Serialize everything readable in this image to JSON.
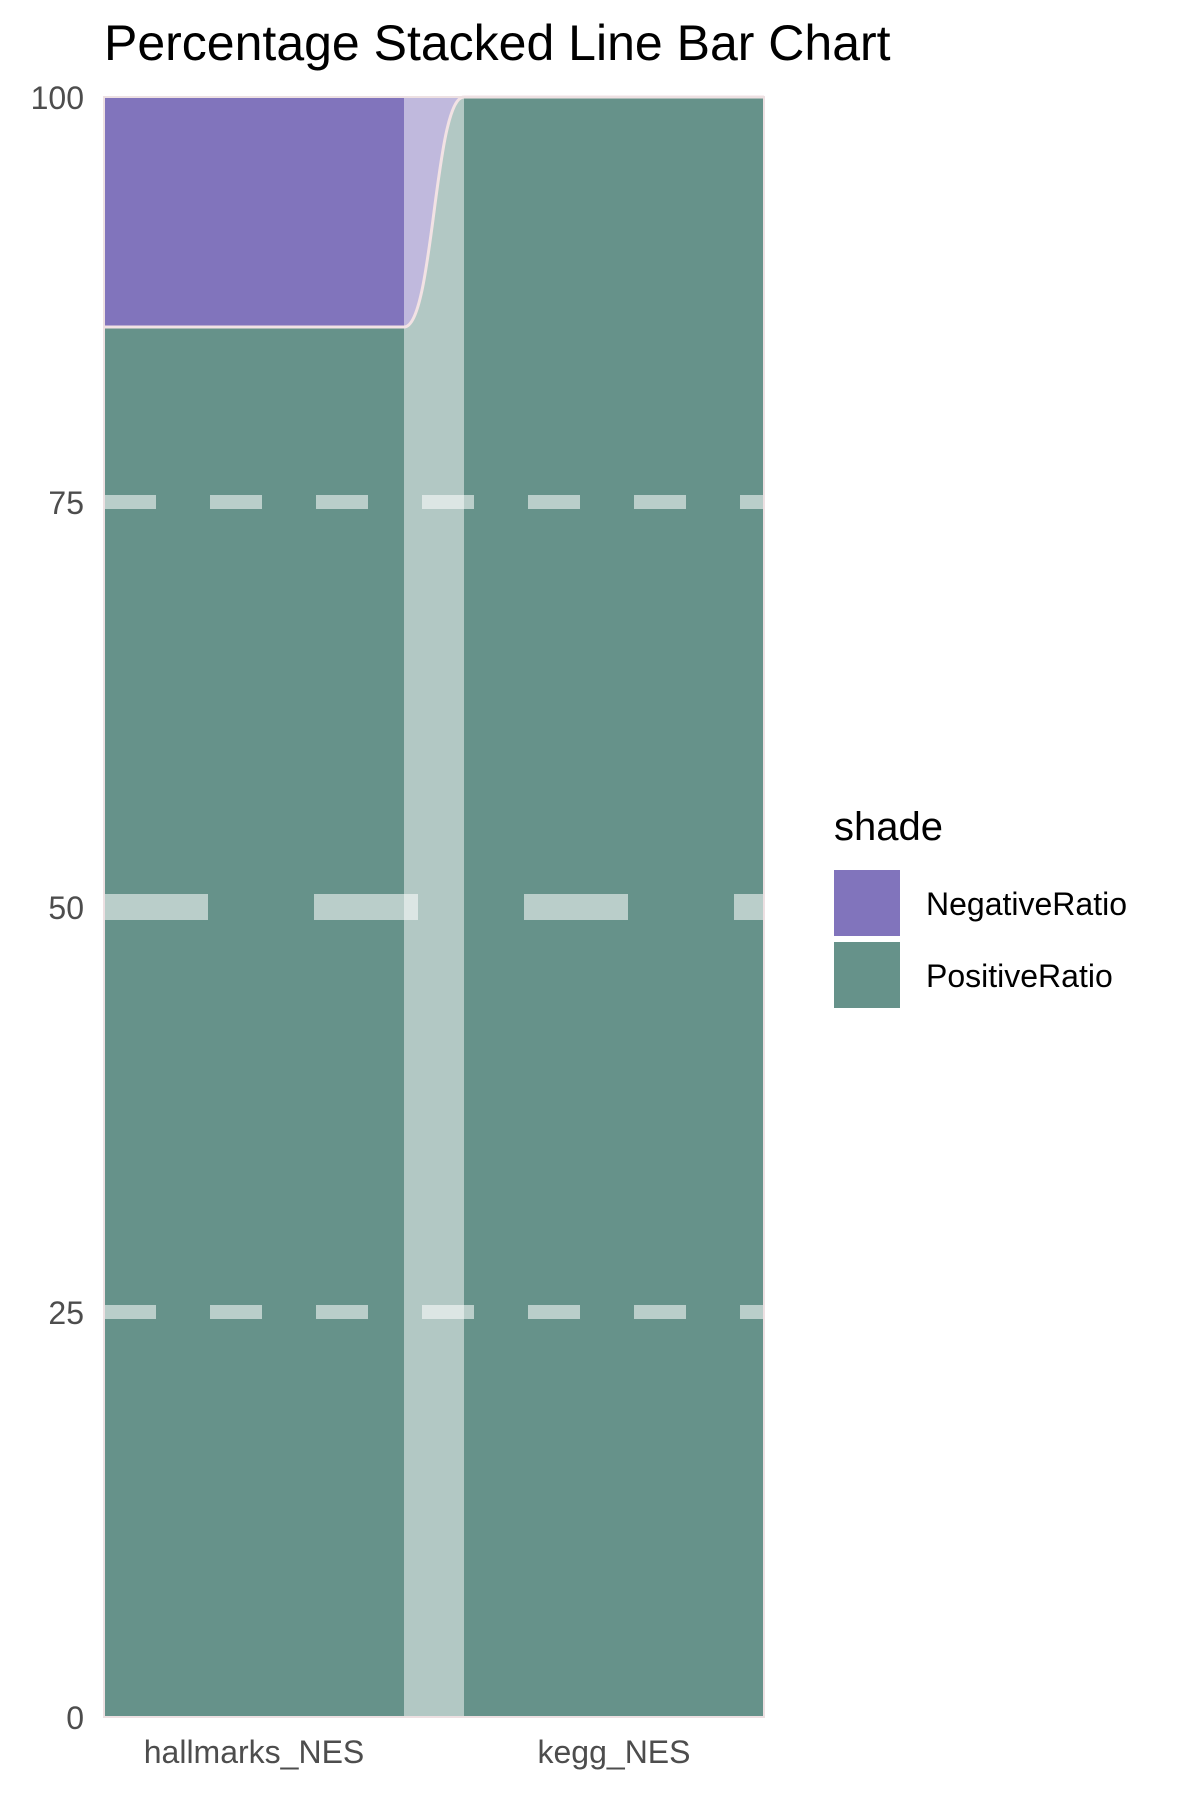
{
  "chart_data": {
    "type": "bar",
    "title": "Percentage Stacked Line Bar Chart",
    "xlabel": "",
    "ylabel": "",
    "categories": [
      "hallmarks_NES",
      "kegg_NES"
    ],
    "series": [
      {
        "name": "NegativeRatio",
        "color": "#8174BC",
        "values": [
          14.2,
          0
        ]
      },
      {
        "name": "PositiveRatio",
        "color": "#66928A",
        "values": [
          85.8,
          100
        ]
      }
    ],
    "ylim": [
      0,
      100
    ],
    "yticks": [
      "0",
      "25",
      "50",
      "75",
      "100"
    ],
    "grid": "dashed horizontal lines at 25, 50, 75",
    "connector_band": true,
    "legend": {
      "title": "shade",
      "placement": "right",
      "items": [
        {
          "label": "NegativeRatio",
          "color": "#8174BC"
        },
        {
          "label": "PositiveRatio",
          "color": "#66928A"
        }
      ]
    }
  }
}
